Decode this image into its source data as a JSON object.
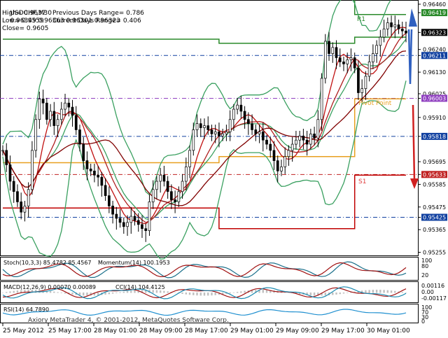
{
  "symbol_header": "USDCHF,M30",
  "header_quotes": "0.96349 0.96363 0.96301 0.96323",
  "info": {
    "high": "High= 0.9637",
    "low": "Low= 0.9559",
    "close": "Close= 0.9605",
    "prev_range": "Previous Days Range= 0.786",
    "cur_range": "Current Days Range= 0.406"
  },
  "level_labels": {
    "r1": "R1",
    "pivot": "Pivot Point",
    "s1": "S1"
  },
  "indicators": {
    "stoch": "Stoch(10,3,3) 85.4782 85.4567",
    "momentum": "Momentum(14) 100.1953",
    "macd": "MACD(12,26,9) 0.00070 0.00089",
    "cci": "CCI(14) 104.4125",
    "rsi": "RSI(14) 64.7890"
  },
  "sub_scales": {
    "stoch": [
      "100",
      "80",
      "20"
    ],
    "macd": [
      "0.00116",
      "0.00",
      "-0.00117"
    ],
    "rsi": [
      "100",
      "70",
      "30",
      "0"
    ]
  },
  "watermark": "Axiory MetaTrader 4, © 2001-2012, MetaQuotes Software Corp.",
  "colors": {
    "up": "#2a8a2a",
    "down": "#c00000",
    "pivot": "#e8a020",
    "bollinger": "#3aa060",
    "ma_fast": "#c01010",
    "ma_slow": "#800000",
    "arrow_up": "#3060c0",
    "arrow_down": "#d02020",
    "highlight": "#1040a0",
    "candle": "#000000"
  },
  "chart_data": {
    "type": "line",
    "title": "USDCHF,M30",
    "ylim": [
      0.9525,
      0.9646
    ],
    "price_ticks": [
      {
        "value": 0.9646,
        "label": "0.96460",
        "style": "plain"
      },
      {
        "value": 0.96419,
        "label": "0.96419",
        "style": "hl-green"
      },
      {
        "value": 0.96323,
        "label": "0.96323",
        "style": "hl-black"
      },
      {
        "value": 0.9624,
        "label": "0.96240",
        "style": "plain"
      },
      {
        "value": 0.96211,
        "label": "0.96211",
        "style": "hl-blue"
      },
      {
        "value": 0.9613,
        "label": "0.96130",
        "style": "plain"
      },
      {
        "value": 0.96025,
        "label": "0.96025",
        "style": "plain"
      },
      {
        "value": 0.96003,
        "label": "0.96003",
        "style": "hl-purple"
      },
      {
        "value": 0.9591,
        "label": "0.95910",
        "style": "plain"
      },
      {
        "value": 0.95818,
        "label": "0.95818",
        "style": "hl-blue"
      },
      {
        "value": 0.95695,
        "label": "0.95695",
        "style": "plain"
      },
      {
        "value": 0.95633,
        "label": "0.95633",
        "style": "hl-red"
      },
      {
        "value": 0.95585,
        "label": "0.95585",
        "style": "plain"
      },
      {
        "value": 0.95475,
        "label": "0.95475",
        "style": "plain"
      },
      {
        "value": 0.95425,
        "label": "0.95425",
        "style": "hl-blue"
      },
      {
        "value": 0.95365,
        "label": "0.95365",
        "style": "plain"
      },
      {
        "value": 0.95255,
        "label": "0.95255",
        "style": "plain"
      }
    ],
    "time_labels": [
      "25 May 2012",
      "25 May 17:00",
      "28 May 01:00",
      "28 May 09:00",
      "28 May 17:00",
      "29 May 01:00",
      "29 May 09:00",
      "29 May 17:00",
      "30 May 01:00"
    ],
    "close_series": [
      0.9575,
      0.9568,
      0.956,
      0.9555,
      0.955,
      0.9545,
      0.9548,
      0.9556,
      0.9575,
      0.959,
      0.96,
      0.9598,
      0.959,
      0.9594,
      0.9587,
      0.959,
      0.9595,
      0.9598,
      0.9596,
      0.9592,
      0.9585,
      0.9578,
      0.957,
      0.9566,
      0.9565,
      0.9563,
      0.9562,
      0.9558,
      0.9553,
      0.9548,
      0.9544,
      0.9542,
      0.954,
      0.9538,
      0.954,
      0.9543,
      0.9541,
      0.9539,
      0.9537,
      0.9536,
      0.955,
      0.9556,
      0.956,
      0.9563,
      0.956,
      0.9555,
      0.9551,
      0.955,
      0.9555,
      0.956,
      0.9567,
      0.9575,
      0.9585,
      0.9588,
      0.9586,
      0.9587,
      0.9585,
      0.9583,
      0.9584,
      0.9582,
      0.9583,
      0.9584,
      0.959,
      0.9595,
      0.9597,
      0.9594,
      0.959,
      0.9588,
      0.9585,
      0.9583,
      0.9584,
      0.958,
      0.9578,
      0.9575,
      0.957,
      0.9565,
      0.9567,
      0.9572,
      0.9575,
      0.9578,
      0.958,
      0.9582,
      0.958,
      0.9578,
      0.9583,
      0.9581,
      0.959,
      0.961,
      0.9628,
      0.9622,
      0.9625,
      0.962,
      0.9618,
      0.9617,
      0.9619,
      0.962,
      0.9615,
      0.9603,
      0.9605,
      0.9611,
      0.9618,
      0.9622,
      0.9626,
      0.963,
      0.9634,
      0.9637,
      0.9635,
      0.9636,
      0.9634,
      0.9633,
      0.9632
    ]
  }
}
